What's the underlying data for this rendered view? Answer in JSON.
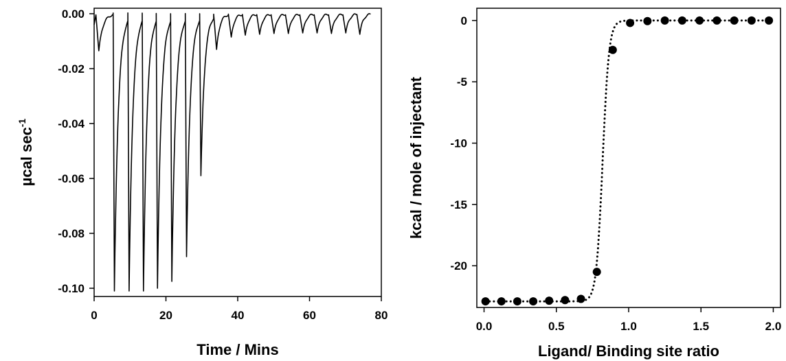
{
  "chart_data": [
    {
      "type": "line",
      "xlabel": "Time / Mins",
      "ylabel": "µcal sec",
      "ylabel_superscript": "-1",
      "xlim": [
        0,
        80
      ],
      "ylim": [
        -0.103,
        0.002
      ],
      "x_ticks": [
        0,
        20,
        40,
        60,
        80
      ],
      "x_tick_labels": [
        "0",
        "20",
        "40",
        "60",
        "80"
      ],
      "y_ticks": [
        0.0,
        -0.02,
        -0.04,
        -0.06,
        -0.08,
        -0.1
      ],
      "y_tick_labels": [
        "0.00",
        "-0.02",
        "-0.04",
        "-0.06",
        "-0.08",
        "-0.10"
      ],
      "grid": false,
      "injections": [
        {
          "time": 0.5,
          "min": -0.0135
        },
        {
          "time": 5.3,
          "min": -0.101
        },
        {
          "time": 9.4,
          "min": -0.101
        },
        {
          "time": 13.4,
          "min": -0.101
        },
        {
          "time": 17.3,
          "min": -0.1
        },
        {
          "time": 21.3,
          "min": -0.0975
        },
        {
          "time": 25.4,
          "min": -0.0885
        },
        {
          "time": 29.4,
          "min": -0.059
        },
        {
          "time": 33.3,
          "min": -0.013
        },
        {
          "time": 37.4,
          "min": -0.0085
        },
        {
          "time": 41.3,
          "min": -0.0078
        },
        {
          "time": 45.3,
          "min": -0.0075
        },
        {
          "time": 49.3,
          "min": -0.0072
        },
        {
          "time": 53.3,
          "min": -0.0072
        },
        {
          "time": 57.3,
          "min": -0.007
        },
        {
          "time": 61.3,
          "min": -0.007
        },
        {
          "time": 65.3,
          "min": -0.0072
        },
        {
          "time": 69.3,
          "min": -0.007
        },
        {
          "time": 73.2,
          "min": -0.0075
        }
      ],
      "end_time": 77.0
    },
    {
      "type": "scatter",
      "xlabel": "Ligand/ Binding site ratio",
      "ylabel": "kcal / mole of injectant",
      "xlim": [
        -0.05,
        2.05
      ],
      "ylim": [
        -23.4,
        1.0
      ],
      "x_ticks": [
        0.0,
        0.5,
        1.0,
        1.5,
        2.0
      ],
      "x_tick_labels": [
        "0.0",
        "0.5",
        "1.0",
        "1.5",
        "2.0"
      ],
      "y_ticks": [
        0,
        -5,
        -10,
        -15,
        -20
      ],
      "y_tick_labels": [
        "0",
        "-5",
        "-10",
        "-15",
        "-20"
      ],
      "grid": false,
      "points": [
        {
          "x": 0.01,
          "y": -22.9
        },
        {
          "x": 0.12,
          "y": -22.9
        },
        {
          "x": 0.23,
          "y": -22.9
        },
        {
          "x": 0.34,
          "y": -22.9
        },
        {
          "x": 0.45,
          "y": -22.85
        },
        {
          "x": 0.56,
          "y": -22.8
        },
        {
          "x": 0.67,
          "y": -22.7
        },
        {
          "x": 0.78,
          "y": -20.5
        },
        {
          "x": 0.89,
          "y": -2.4
        },
        {
          "x": 1.01,
          "y": -0.2
        },
        {
          "x": 1.13,
          "y": -0.05
        },
        {
          "x": 1.25,
          "y": 0.0
        },
        {
          "x": 1.37,
          "y": 0.0
        },
        {
          "x": 1.49,
          "y": 0.0
        },
        {
          "x": 1.61,
          "y": 0.0
        },
        {
          "x": 1.73,
          "y": 0.0
        },
        {
          "x": 1.85,
          "y": 0.0
        },
        {
          "x": 1.97,
          "y": 0.0
        }
      ],
      "fit": {
        "style": "dotted",
        "y_low": -22.9,
        "y_high": 0.0,
        "midpoint": 0.82,
        "width": 0.022
      }
    }
  ]
}
